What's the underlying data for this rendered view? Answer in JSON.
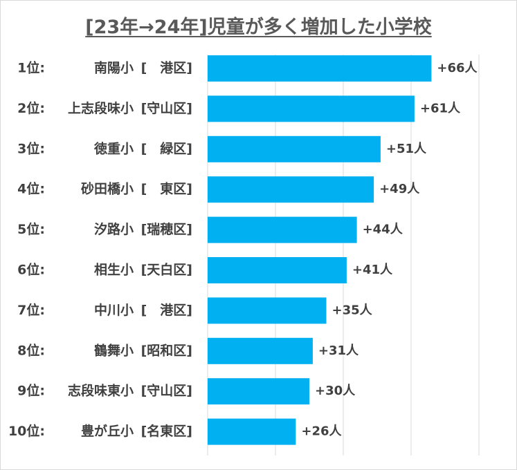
{
  "chart_data": {
    "type": "bar",
    "orientation": "horizontal",
    "title": "[23年→24年]児童が多く増加した小学校",
    "categories": [
      {
        "rank": "1位:",
        "name": "南陽小",
        "ward": "[　港区]"
      },
      {
        "rank": "2位:",
        "name": "上志段味小",
        "ward": "[守山区]"
      },
      {
        "rank": "3位:",
        "name": "徳重小",
        "ward": "[　緑区]"
      },
      {
        "rank": "4位:",
        "name": "砂田橋小",
        "ward": "[　東区]"
      },
      {
        "rank": "5位:",
        "name": "汐路小",
        "ward": "[瑞穂区]"
      },
      {
        "rank": "6位:",
        "name": "相生小",
        "ward": "[天白区]"
      },
      {
        "rank": "7位:",
        "name": "中川小",
        "ward": "[　港区]"
      },
      {
        "rank": "8位:",
        "name": "鶴舞小",
        "ward": "[昭和区]"
      },
      {
        "rank": "9位:",
        "name": "志段味東小",
        "ward": "[守山区]"
      },
      {
        "rank": "10位:",
        "name": "豊が丘小",
        "ward": "[名東区]"
      }
    ],
    "values": [
      66,
      61,
      51,
      49,
      44,
      41,
      35,
      31,
      30,
      26
    ],
    "value_labels": [
      "+66人",
      "+61人",
      "+51人",
      "+49人",
      "+44人",
      "+41人",
      "+35人",
      "+31人",
      "+30人",
      "+26人"
    ],
    "xlim": [
      0,
      80
    ],
    "gridlines_at": [
      0,
      20,
      40,
      60,
      80
    ],
    "grid": true,
    "bar_color": "#00b0f0",
    "legend": "none"
  }
}
